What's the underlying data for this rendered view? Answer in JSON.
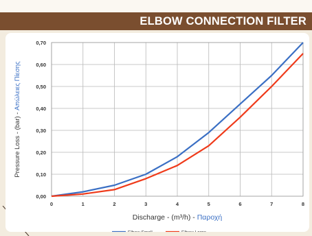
{
  "header": {
    "title": "ELBOW CONNECTION FILTER"
  },
  "colors": {
    "title_bar": "#7a4e2f",
    "series_small": "#3a6fc4",
    "series_large": "#ef3a1a",
    "grid": "#b8b8b8",
    "ylabel_greek": "#3a6fc4"
  },
  "chart_data": {
    "type": "line",
    "title": "",
    "xlabel": "Discharge - (m³/h) - Παροχή",
    "xlabel_parts": [
      "Discharge - (m³/h) - ",
      "Παροχή"
    ],
    "ylabel": "Pressure Loss - (bar) - Απώλειες Πίεσης",
    "ylabel_parts": [
      "Pressure Loss - (bar) - ",
      "Απώλειες Πίεσης"
    ],
    "xlim": [
      0,
      8
    ],
    "ylim": [
      0,
      0.7
    ],
    "x_ticks": [
      "0",
      "1",
      "2",
      "3",
      "4",
      "5",
      "6",
      "7",
      "8"
    ],
    "y_ticks": [
      "0,00",
      "0,10",
      "0,20",
      "0,30",
      "0,40",
      "0,50",
      "0,60",
      "0,70"
    ],
    "grid": true,
    "legend_position": "bottom-center",
    "x": [
      0,
      1,
      2,
      3,
      4,
      5,
      6,
      7,
      8
    ],
    "series": [
      {
        "name": "Elbow Small",
        "values": [
          0,
          0.02,
          0.05,
          0.1,
          0.18,
          0.29,
          0.42,
          0.55,
          0.7
        ]
      },
      {
        "name": "Elbow Large",
        "values": [
          0,
          0.01,
          0.03,
          0.08,
          0.14,
          0.23,
          0.36,
          0.5,
          0.65
        ]
      }
    ]
  }
}
